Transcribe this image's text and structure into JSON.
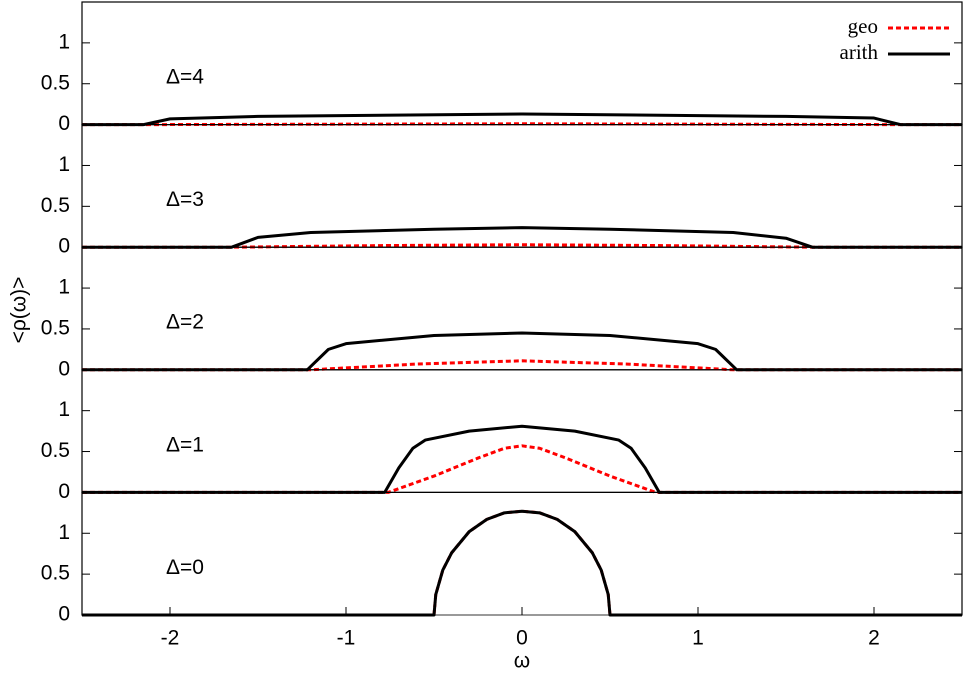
{
  "chart_data": [
    {
      "type": "line",
      "annotation": "Δ=4",
      "ylabel": "<ρ(ω)>",
      "xlim": [
        -2.5,
        2.5
      ],
      "ylim": [
        0,
        1.5
      ],
      "yticks": [
        0,
        0.5,
        1
      ],
      "series": [
        {
          "name": "geo",
          "color": "#ff0000",
          "dashed": true,
          "x": [
            -2.5,
            -2.1,
            0,
            2.1,
            2.5
          ],
          "values": [
            0,
            0,
            0.01,
            0,
            0
          ]
        },
        {
          "name": "arith",
          "color": "#000000",
          "x": [
            -2.5,
            -2.15,
            -2.0,
            -1.5,
            0,
            1.5,
            2.0,
            2.15,
            2.5
          ],
          "values": [
            0,
            0,
            0.07,
            0.1,
            0.13,
            0.1,
            0.08,
            0,
            0
          ]
        }
      ]
    },
    {
      "type": "line",
      "annotation": "Δ=3",
      "xlim": [
        -2.5,
        2.5
      ],
      "ylim": [
        0,
        1.5
      ],
      "yticks": [
        0,
        0.5,
        1
      ],
      "series": [
        {
          "color": "#ff0000",
          "dashed": true,
          "x": [
            -2.5,
            -1.65,
            -0.8,
            0,
            0.8,
            1.65,
            2.5
          ],
          "values": [
            0,
            0,
            0.02,
            0.03,
            0.02,
            0,
            0
          ]
        },
        {
          "color": "#000000",
          "x": [
            -2.5,
            -1.65,
            -1.5,
            -1.2,
            -0.5,
            0,
            0.5,
            1.2,
            1.5,
            1.65,
            2.5
          ],
          "values": [
            0,
            0,
            0.12,
            0.18,
            0.22,
            0.24,
            0.22,
            0.18,
            0.11,
            0,
            0
          ]
        }
      ]
    },
    {
      "type": "line",
      "annotation": "Δ=2",
      "xlim": [
        -2.5,
        2.5
      ],
      "ylim": [
        0,
        1.5
      ],
      "yticks": [
        0,
        0.5,
        1
      ],
      "series": [
        {
          "color": "#ff0000",
          "dashed": true,
          "x": [
            -2.5,
            -1.2,
            -0.6,
            0,
            0.6,
            1.2,
            2.5
          ],
          "values": [
            0,
            0,
            0.07,
            0.11,
            0.07,
            0,
            0
          ]
        },
        {
          "color": "#000000",
          "x": [
            -2.5,
            -1.22,
            -1.1,
            -1.0,
            -0.5,
            0,
            0.5,
            1.0,
            1.1,
            1.22,
            2.5
          ],
          "values": [
            0,
            0,
            0.25,
            0.32,
            0.42,
            0.45,
            0.42,
            0.32,
            0.25,
            0,
            0
          ]
        }
      ]
    },
    {
      "type": "line",
      "annotation": "Δ=1",
      "xlim": [
        -2.5,
        2.5
      ],
      "ylim": [
        0,
        1.5
      ],
      "yticks": [
        0,
        0.5,
        1
      ],
      "series": [
        {
          "color": "#ff0000",
          "dashed": true,
          "x": [
            -2.5,
            -0.76,
            -0.5,
            -0.25,
            -0.1,
            0,
            0.1,
            0.25,
            0.5,
            0.76,
            2.5
          ],
          "values": [
            0,
            0,
            0.2,
            0.42,
            0.54,
            0.57,
            0.54,
            0.42,
            0.2,
            0,
            0
          ]
        },
        {
          "color": "#000000",
          "x": [
            -2.5,
            -0.78,
            -0.7,
            -0.62,
            -0.55,
            -0.3,
            0,
            0.3,
            0.55,
            0.62,
            0.7,
            0.78,
            2.5
          ],
          "values": [
            0,
            0,
            0.3,
            0.54,
            0.64,
            0.75,
            0.81,
            0.75,
            0.64,
            0.54,
            0.3,
            0,
            0
          ]
        }
      ]
    },
    {
      "type": "line",
      "annotation": "Δ=0",
      "xlabel": "ω",
      "xlim": [
        -2.5,
        2.5
      ],
      "ylim": [
        0,
        1.5
      ],
      "yticks": [
        0,
        0.5,
        1
      ],
      "xticks": [
        -2,
        -1,
        0,
        1,
        2
      ],
      "series": [
        {
          "color": "#ff0000",
          "dashed": true,
          "x": [
            -2.5,
            -0.5,
            -0.49,
            -0.45,
            -0.4,
            -0.3,
            -0.2,
            -0.1,
            0,
            0.1,
            0.2,
            0.3,
            0.4,
            0.45,
            0.49,
            0.5,
            2.5
          ],
          "values": [
            0,
            0,
            0.25,
            0.55,
            0.76,
            1.02,
            1.17,
            1.25,
            1.27,
            1.25,
            1.17,
            1.02,
            0.76,
            0.55,
            0.25,
            0,
            0
          ]
        },
        {
          "color": "#000000",
          "x": [
            -2.5,
            -0.5,
            -0.49,
            -0.45,
            -0.4,
            -0.3,
            -0.2,
            -0.1,
            0,
            0.1,
            0.2,
            0.3,
            0.4,
            0.45,
            0.49,
            0.5,
            2.5
          ],
          "values": [
            0,
            0,
            0.25,
            0.55,
            0.76,
            1.02,
            1.17,
            1.25,
            1.27,
            1.25,
            1.17,
            1.02,
            0.76,
            0.55,
            0.25,
            0,
            0
          ]
        }
      ]
    }
  ]
}
